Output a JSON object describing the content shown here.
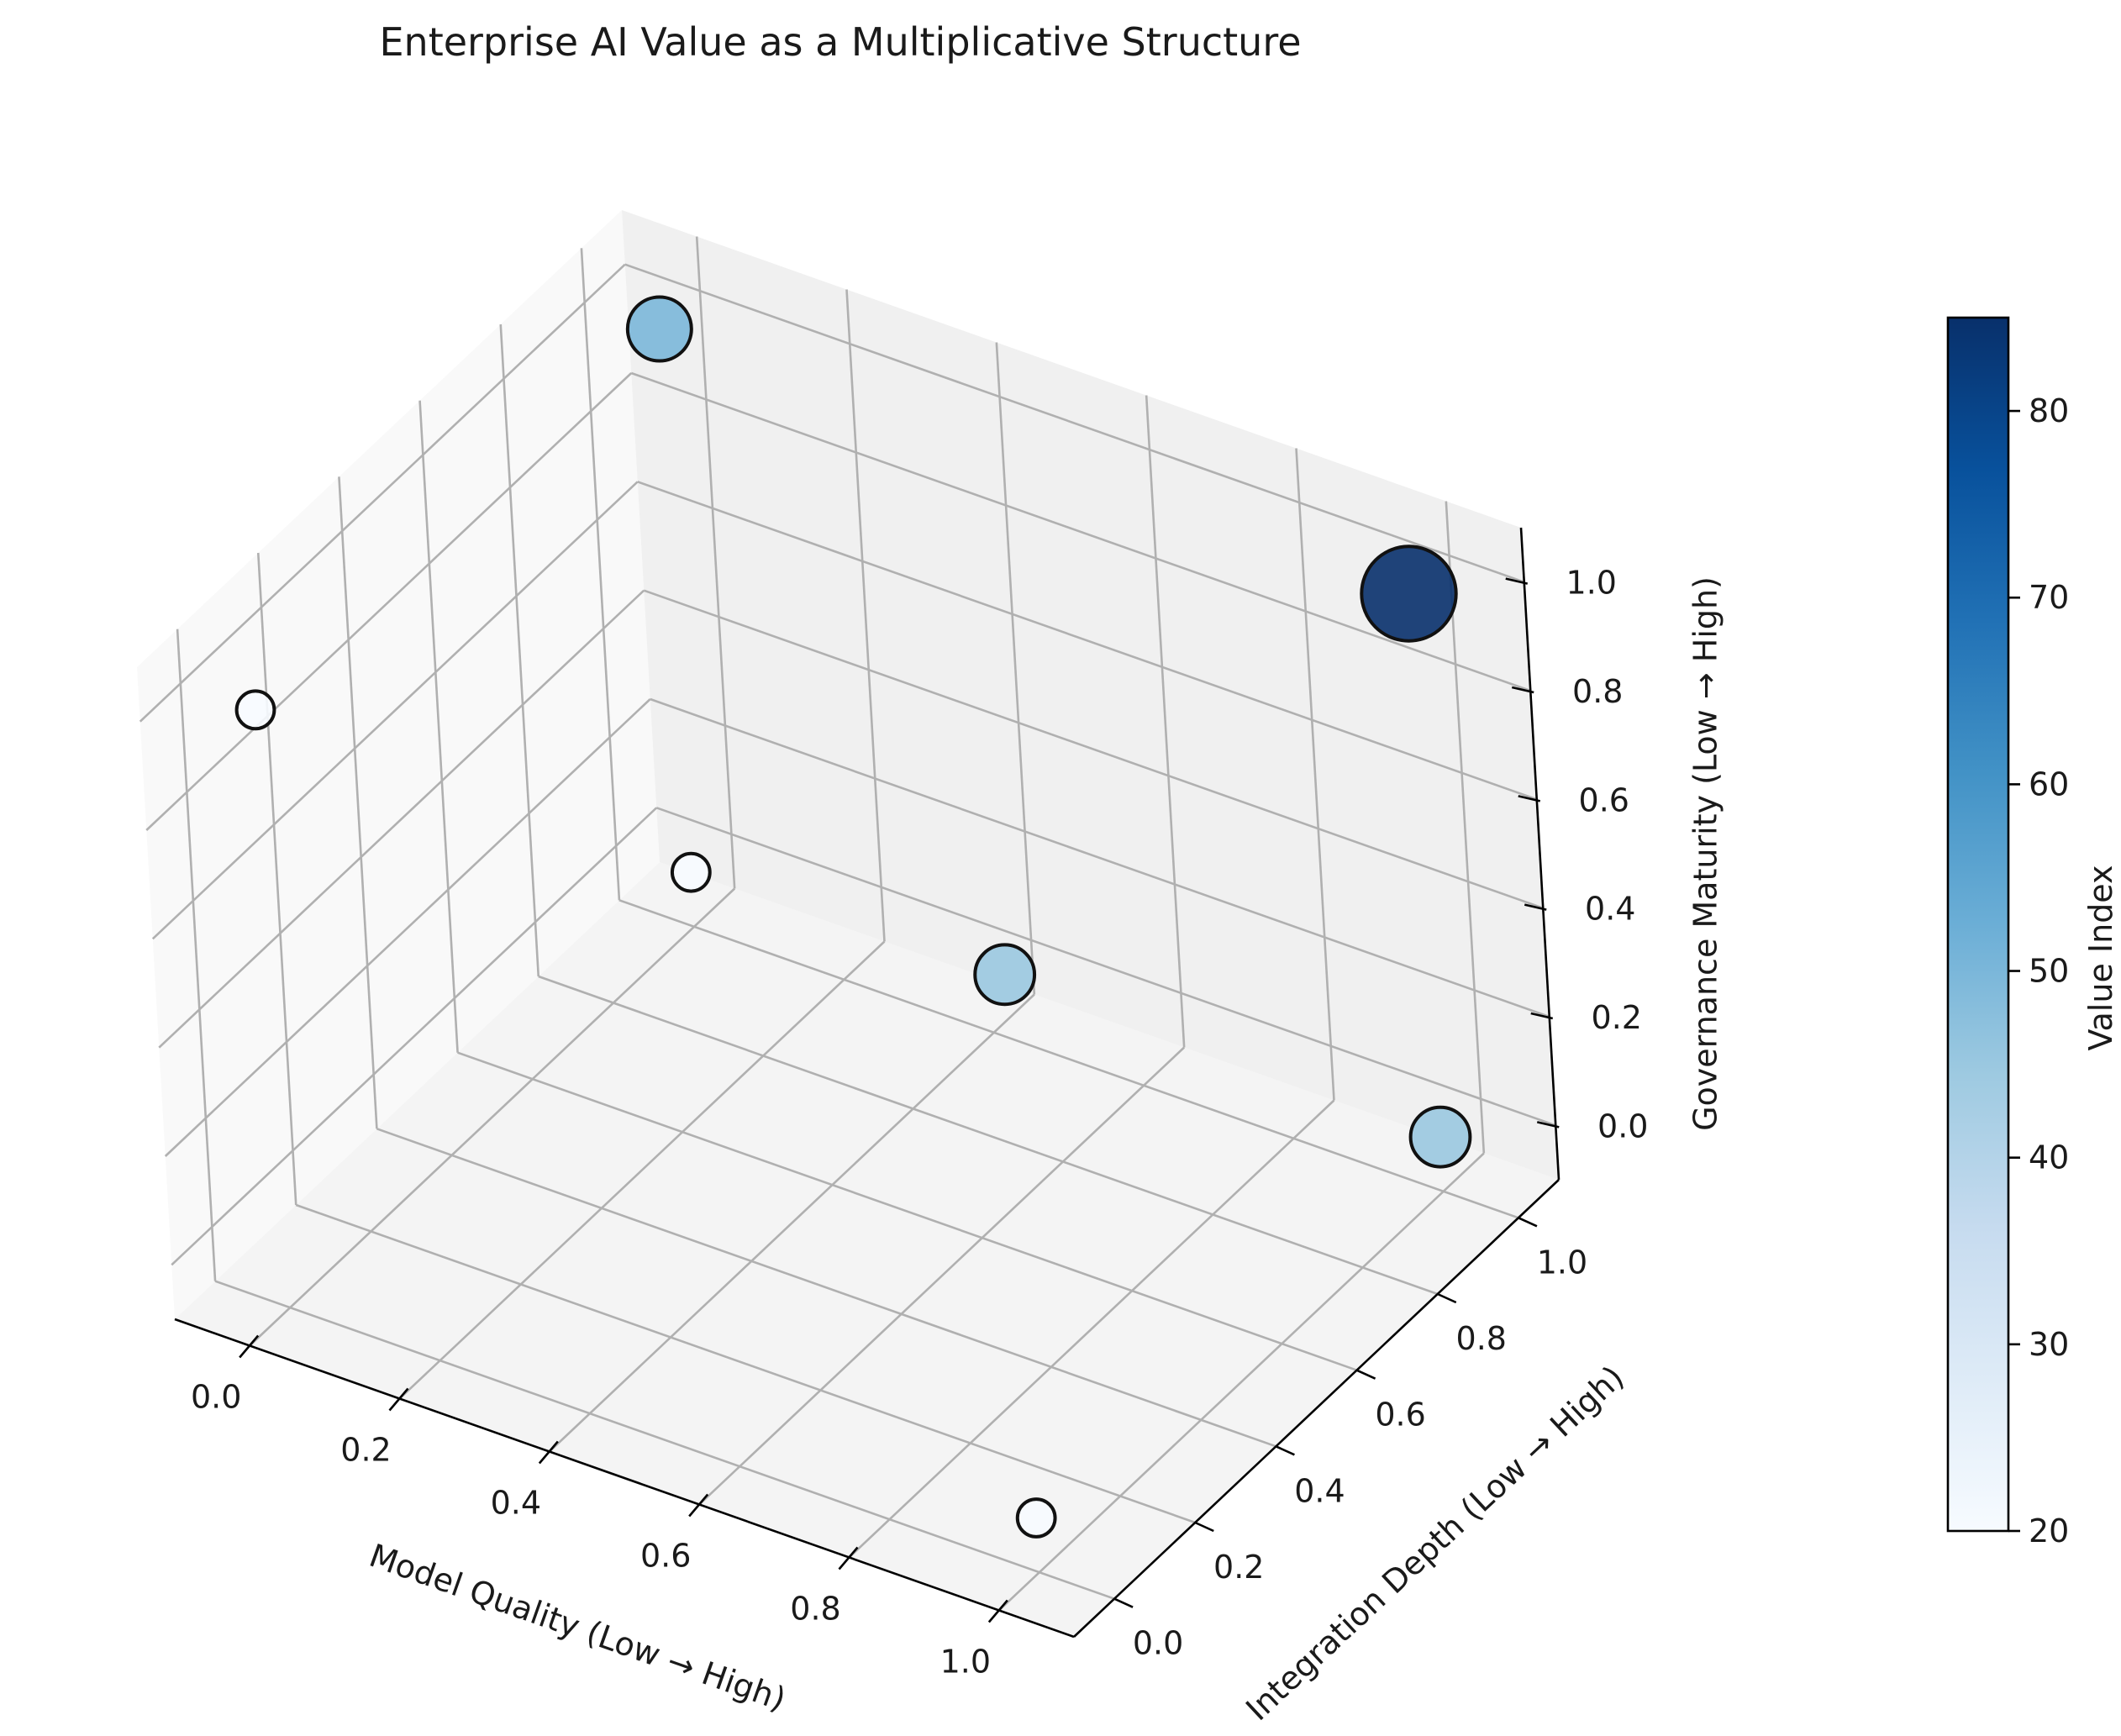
{
  "chart_data": {
    "type": "scatter",
    "projection": "3d",
    "title": "Enterprise AI Value as a Multiplicative Structure",
    "xlabel": "Model Quality (Low → High)",
    "ylabel": "Integration Depth (Low → High)",
    "zlabel": "Governance Maturity (Low → High)",
    "xlim": [
      -0.1,
      1.1
    ],
    "ylim": [
      -0.1,
      1.1
    ],
    "zlim": [
      -0.1,
      1.1
    ],
    "xticks": [
      "0.0",
      "0.2",
      "0.4",
      "0.6",
      "0.8",
      "1.0"
    ],
    "yticks": [
      "0.0",
      "0.2",
      "0.4",
      "0.6",
      "0.8",
      "1.0"
    ],
    "zticks": [
      "0.0",
      "0.2",
      "0.4",
      "0.6",
      "0.8",
      "1.0"
    ],
    "grid": true,
    "points": [
      {
        "x": 0.0,
        "y": 0.0,
        "z": 1.0,
        "value": 20
      },
      {
        "x": 1.0,
        "y": 0.0,
        "z": 0.0,
        "value": 20
      },
      {
        "x": 0.0,
        "y": 1.0,
        "z": 0.0,
        "value": 20
      },
      {
        "x": 0.0,
        "y": 1.0,
        "z": 1.0,
        "value": 50
      },
      {
        "x": 1.0,
        "y": 0.0,
        "z": 1.0,
        "value": 45
      },
      {
        "x": 1.0,
        "y": 1.0,
        "z": 0.0,
        "value": 45
      },
      {
        "x": 1.0,
        "y": 1.0,
        "z": 1.0,
        "value": 85
      }
    ],
    "colorbar": {
      "label": "Value Index",
      "min": 20,
      "max": 85,
      "ticks": [
        "20",
        "30",
        "40",
        "50",
        "60",
        "70",
        "80"
      ],
      "colormap": "Blues"
    }
  }
}
